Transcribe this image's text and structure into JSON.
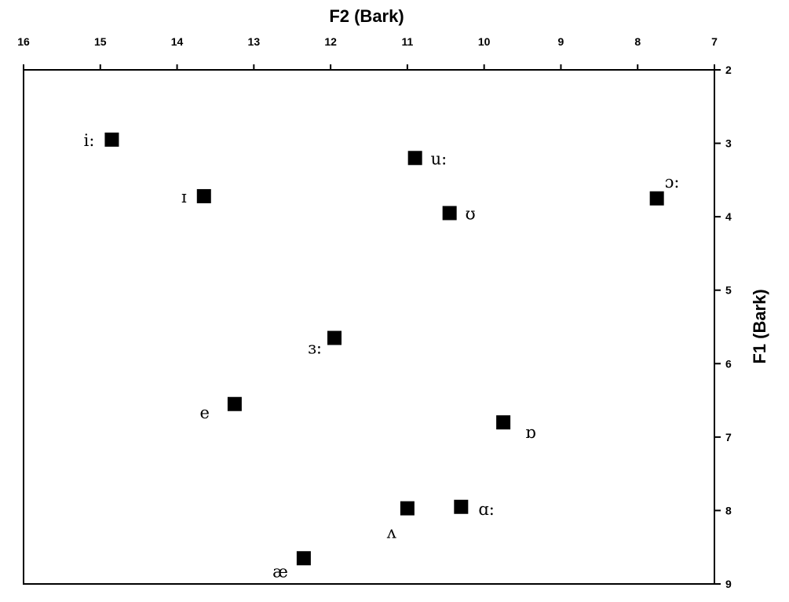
{
  "chart_data": {
    "type": "scatter",
    "xlabel": "F2 (Bark)",
    "ylabel": "F1 (Bark)",
    "x_axis_position": "top",
    "y_axis_position": "right",
    "x_reversed": true,
    "y_reversed": true,
    "xlim": [
      16,
      7
    ],
    "ylim": [
      2,
      9
    ],
    "x_ticks": [
      "16",
      "15",
      "14",
      "13",
      "12",
      "11",
      "10",
      "9",
      "8",
      "7"
    ],
    "y_ticks": [
      "2",
      "3",
      "4",
      "5",
      "6",
      "7",
      "8",
      "9"
    ],
    "grid": false,
    "marker": "square",
    "marker_color": "#000000",
    "points": [
      {
        "label": "i:",
        "x": 14.85,
        "y": 2.95
      },
      {
        "label": "ɪ",
        "x": 13.65,
        "y": 3.72
      },
      {
        "label": "u:",
        "x": 10.9,
        "y": 3.2
      },
      {
        "label": "ʊ",
        "x": 10.45,
        "y": 3.95
      },
      {
        "label": "ɔ:",
        "x": 7.75,
        "y": 3.75
      },
      {
        "label": "ɜ:",
        "x": 11.95,
        "y": 5.65
      },
      {
        "label": "e",
        "x": 13.25,
        "y": 6.55
      },
      {
        "label": "ɒ",
        "x": 9.75,
        "y": 6.8
      },
      {
        "label": "ʌ",
        "x": 11,
        "y": 7.97
      },
      {
        "label": "ɑ:",
        "x": 10.3,
        "y": 7.95
      },
      {
        "label": "æ",
        "x": 12.35,
        "y": 8.65
      }
    ]
  }
}
